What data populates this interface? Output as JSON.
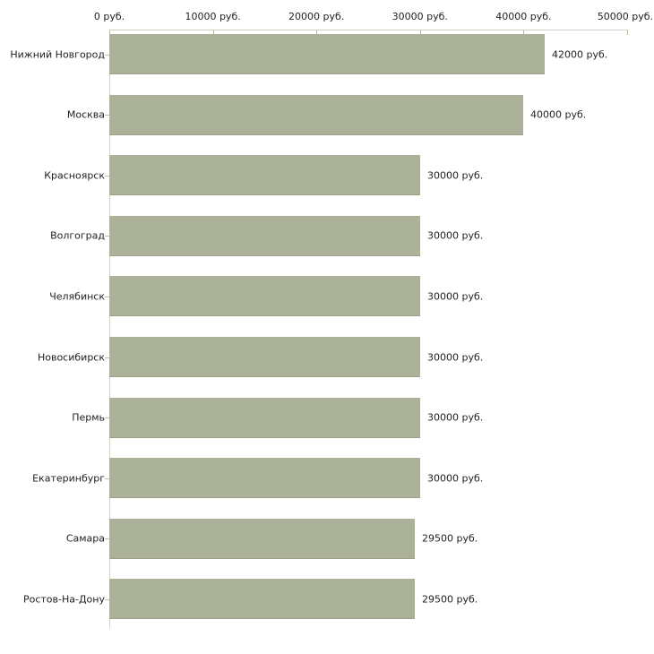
{
  "chart_data": {
    "type": "bar",
    "orientation": "horizontal",
    "title": "",
    "xlabel": "",
    "ylabel": "",
    "unit": "руб.",
    "xlim": [
      0,
      50000
    ],
    "grid": false,
    "legend": null,
    "x_tick_values": [
      0,
      10000,
      20000,
      30000,
      40000,
      50000
    ],
    "x_tick_labels": [
      "0 руб.",
      "10000 руб.",
      "20000 руб.",
      "30000 руб.",
      "40000 руб.",
      "50000 руб."
    ],
    "categories": [
      "Нижний Новгород",
      "Москва",
      "Красноярск",
      "Волгоград",
      "Челябинск",
      "Новосибирск",
      "Пермь",
      "Екатеринбург",
      "Самара",
      "Ростов-На-Дону"
    ],
    "values": [
      42000,
      40000,
      30000,
      30000,
      30000,
      30000,
      30000,
      30000,
      29500,
      29500
    ],
    "value_labels": [
      "42000 руб.",
      "40000 руб.",
      "30000 руб.",
      "30000 руб.",
      "30000 руб.",
      "30000 руб.",
      "30000 руб.",
      "30000 руб.",
      "29500 руб.",
      "29500 руб."
    ],
    "colors": {
      "bar_fill": "#acb199",
      "bar_edge": "#9ba086",
      "axis_line": "#d3d3c7",
      "tick_mark": "#bcbf9f",
      "text": "#222222",
      "background": "#ffffff"
    }
  }
}
